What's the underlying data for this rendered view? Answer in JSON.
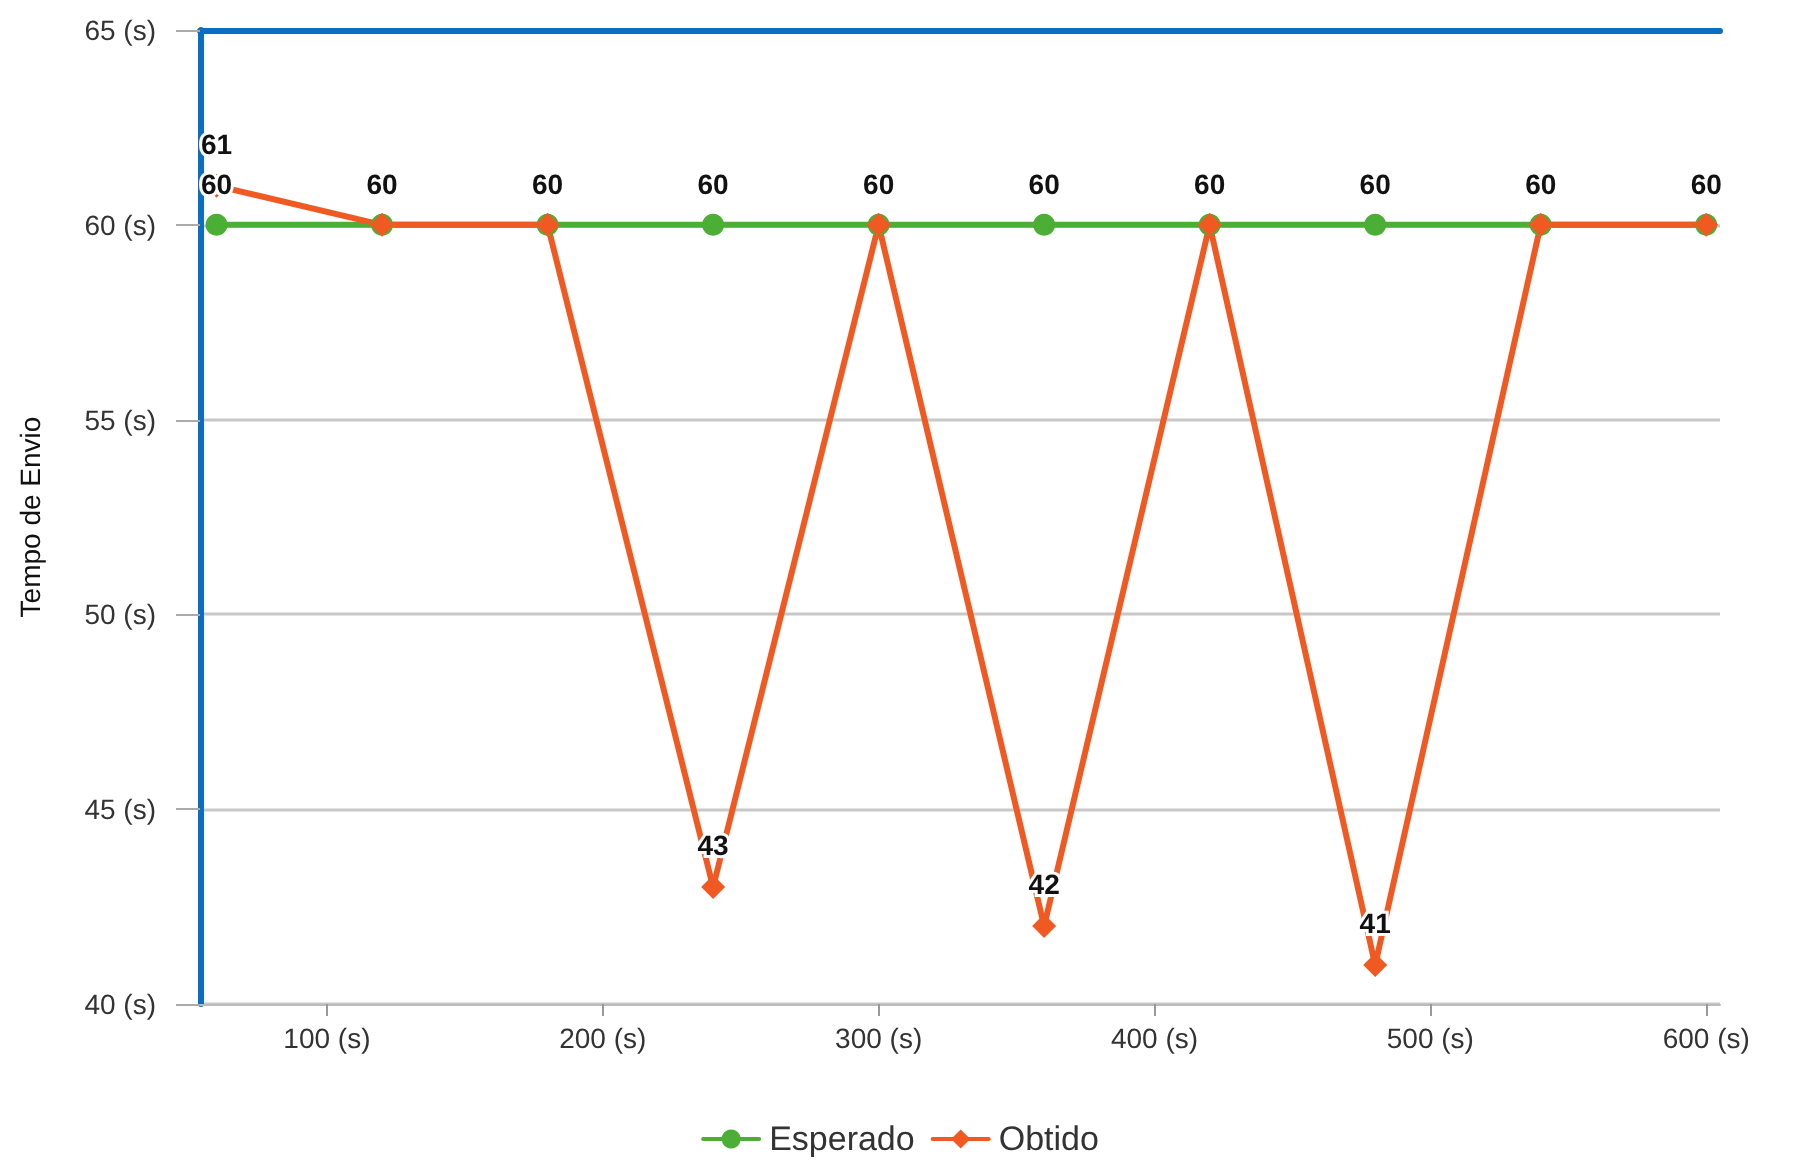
{
  "chart_data": {
    "type": "line",
    "ylabel": "Tempo de Envio",
    "x": [
      60,
      120,
      180,
      240,
      300,
      360,
      420,
      480,
      540,
      600
    ],
    "xlim": [
      54,
      605
    ],
    "xticks": [
      {
        "value": 100,
        "label": "100 (s)"
      },
      {
        "value": 200,
        "label": "200 (s)"
      },
      {
        "value": 300,
        "label": "300 (s)"
      },
      {
        "value": 400,
        "label": "400 (s)"
      },
      {
        "value": 500,
        "label": "500 (s)"
      },
      {
        "value": 600,
        "label": "600 (s)"
      }
    ],
    "ylim": [
      40,
      65
    ],
    "yticks": [
      {
        "value": 40,
        "label": "40 (s)"
      },
      {
        "value": 45,
        "label": "45 (s)"
      },
      {
        "value": 50,
        "label": "50 (s)"
      },
      {
        "value": 55,
        "label": "55 (s)"
      },
      {
        "value": 60,
        "label": "60 (s)"
      },
      {
        "value": 65,
        "label": "65 (s)"
      }
    ],
    "series": [
      {
        "name": "Esperado",
        "color": "#4caf35",
        "marker": "circle",
        "values": [
          60,
          60,
          60,
          60,
          60,
          60,
          60,
          60,
          60,
          60
        ],
        "value_labels": [
          "60",
          "60",
          "60",
          "60",
          "60",
          "60",
          "60",
          "60",
          "60",
          "60"
        ]
      },
      {
        "name": "Obtido",
        "color": "#f05a22",
        "marker": "diamond",
        "values": [
          61,
          60,
          60,
          43,
          60,
          42,
          60,
          41,
          60,
          60
        ],
        "value_labels": [
          "61",
          null,
          null,
          "43",
          null,
          "42",
          null,
          "41",
          null,
          null
        ]
      }
    ],
    "grid": "y",
    "legend": "bottom",
    "line_style": "solid"
  }
}
